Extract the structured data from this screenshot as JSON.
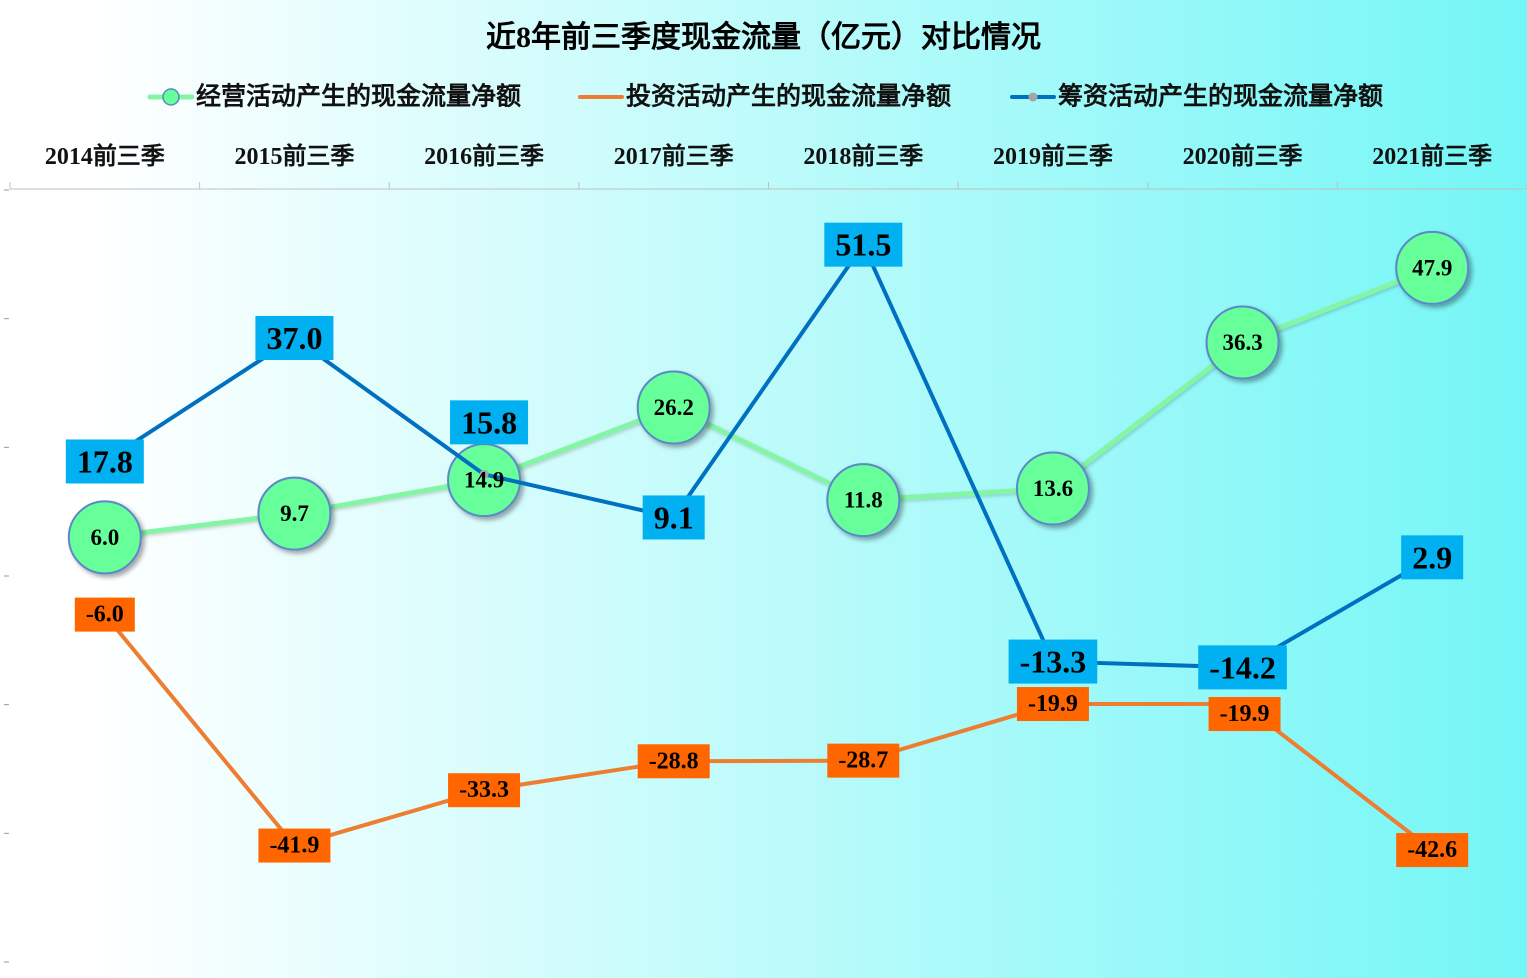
{
  "chart_data": {
    "type": "line",
    "title": "近8年前三季度现金流量（亿元）对比情况",
    "categories": [
      "2014前三季",
      "2015前三季",
      "2016前三季",
      "2017前三季",
      "2018前三季",
      "2019前三季",
      "2020前三季",
      "2021前三季"
    ],
    "ylim": [
      -60,
      60
    ],
    "yticks": [
      60,
      40,
      20,
      0,
      -20,
      -40,
      -60
    ],
    "grid": false,
    "legend_position": "top",
    "background_colors": [
      "#ffffff",
      "#74f6f6"
    ],
    "series": [
      {
        "name": "经营活动产生的现金流量净额",
        "values": [
          6.0,
          9.7,
          14.9,
          26.2,
          11.8,
          13.6,
          36.3,
          47.9
        ],
        "line_color": "#84f5a4",
        "marker_fill": "#66ff99",
        "marker_border": "#5b87c8"
      },
      {
        "name": "投资活动产生的现金流量净额",
        "values": [
          -6.0,
          -41.9,
          -33.3,
          -28.8,
          -28.7,
          -19.9,
          -19.9,
          -42.6
        ],
        "line_color": "#ed7d31",
        "label_fill": "#ff6600"
      },
      {
        "name": "筹资活动产生的现金流量净额",
        "values": [
          17.8,
          37.0,
          15.8,
          9.1,
          51.5,
          -13.3,
          -14.2,
          2.9
        ],
        "line_color": "#0070c0",
        "marker_fill": "#a5a5a5",
        "label_fill": "#00b0f0"
      }
    ]
  }
}
